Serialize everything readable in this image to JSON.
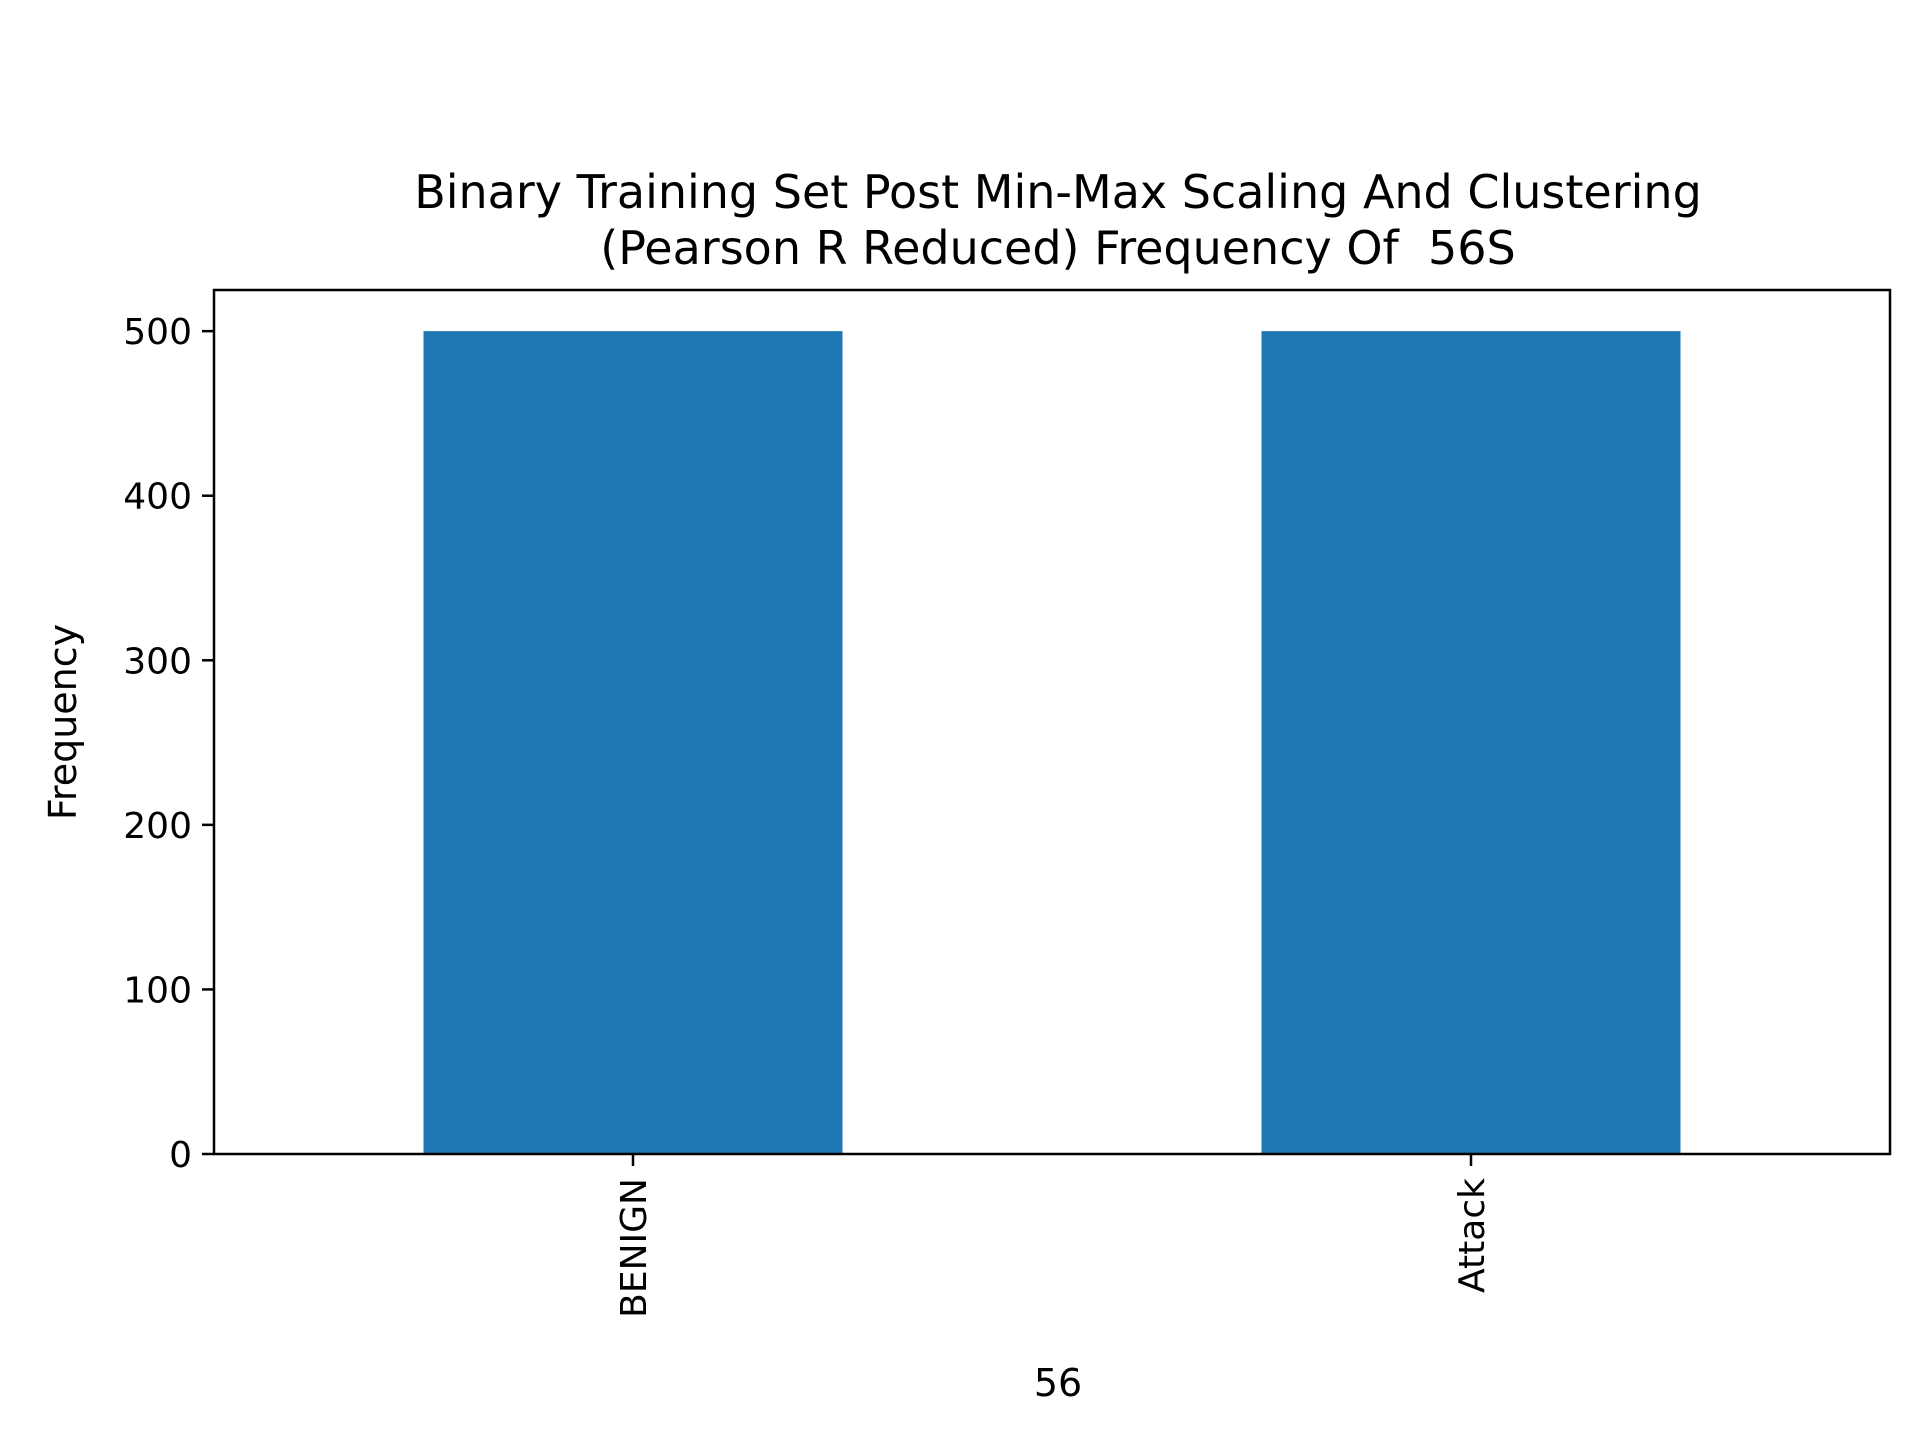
{
  "chart_data": {
    "type": "bar",
    "title": "Binary Training Set Post Min-Max Scaling And Clustering",
    "subtitle": "(Pearson R Reduced) Frequency Of  56S",
    "xlabel": "56",
    "ylabel": "Frequency",
    "categories": [
      "BENIGN",
      "Attack"
    ],
    "values": [
      500,
      500
    ],
    "ylim": [
      0,
      525
    ],
    "yticks": [
      0,
      100,
      200,
      300,
      400,
      500
    ],
    "bar_color": "#1f77b4",
    "grid": false,
    "legend": "none"
  }
}
